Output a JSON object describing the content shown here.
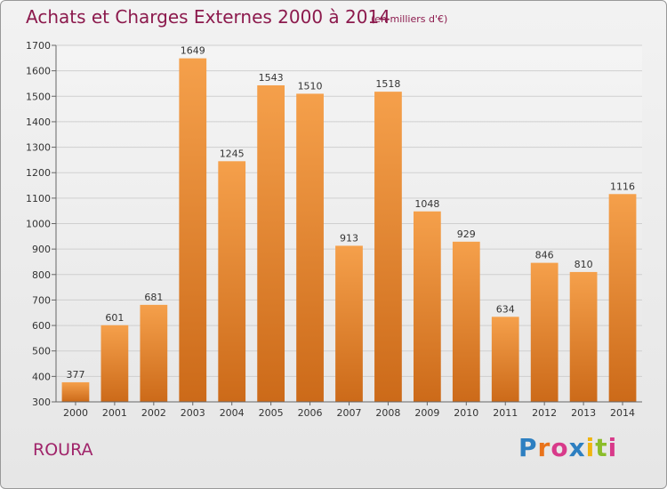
{
  "header": {
    "title": "Achats et Charges Externes 2000 à 2014",
    "subtitle": "(en milliers d'€)"
  },
  "footer": {
    "commune": "ROURA",
    "brand": "Proxiti"
  },
  "colors": {
    "bar_top": "#f5a04b",
    "bar_bottom": "#cc6a19",
    "title": "#8c1a4d",
    "commune": "#a0246a"
  },
  "chart_data": {
    "type": "bar",
    "categories": [
      "2000",
      "2001",
      "2002",
      "2003",
      "2004",
      "2005",
      "2006",
      "2007",
      "2008",
      "2009",
      "2010",
      "2011",
      "2012",
      "2013",
      "2014"
    ],
    "values": [
      377,
      601,
      681,
      1649,
      1245,
      1543,
      1510,
      913,
      1518,
      1048,
      929,
      634,
      846,
      810,
      1116
    ],
    "title": "Achats et Charges Externes 2000 à 2014",
    "xlabel": "",
    "ylabel": "",
    "ylim": [
      300,
      1700
    ],
    "yticks": [
      300,
      400,
      500,
      600,
      700,
      800,
      900,
      1000,
      1100,
      1200,
      1300,
      1400,
      1500,
      1600,
      1700
    ],
    "grid": true,
    "legend": "none"
  }
}
